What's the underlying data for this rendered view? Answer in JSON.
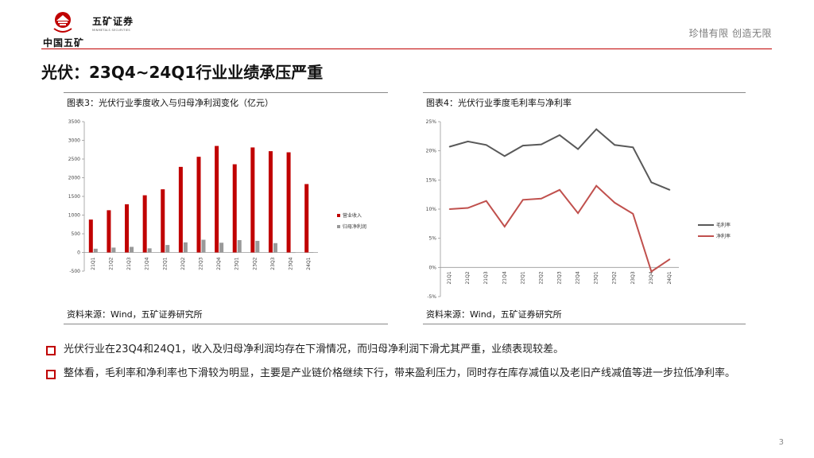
{
  "header": {
    "brand_cn": "五矿证券",
    "brand_en": "MINMETALS SECURITIES",
    "org_name": "中国五矿",
    "slogan": "珍惜有限 创造无限",
    "accent_color": "#c00000"
  },
  "page_title": "光伏：23Q4~24Q1行业业绩承压严重",
  "figures": [
    {
      "title": "图表3：光伏行业季度收入与归母净利润变化（亿元）",
      "source": "资料来源：Wind，五矿证券研究所"
    },
    {
      "title": "图表4：光伏行业季度毛利率与净利率",
      "source": "资料来源：Wind，五矿证券研究所"
    }
  ],
  "chart_data": [
    {
      "type": "bar",
      "categories": [
        "21Q1",
        "21Q2",
        "21Q3",
        "21Q4",
        "22Q1",
        "22Q2",
        "22Q3",
        "22Q4",
        "23Q1",
        "23Q2",
        "23Q3",
        "23Q4",
        "24Q1"
      ],
      "series": [
        {
          "name": "营业收入",
          "color": "#c00000",
          "values": [
            880,
            1130,
            1290,
            1530,
            1690,
            2290,
            2560,
            2850,
            2360,
            2810,
            2710,
            2680,
            1830
          ]
        },
        {
          "name": "归母净利润",
          "color": "#999999",
          "values": [
            100,
            130,
            150,
            110,
            200,
            270,
            340,
            260,
            330,
            310,
            250,
            -10,
            10
          ]
        }
      ],
      "yticks": [
        "-500",
        "0",
        "500",
        "1000",
        "1500",
        "2000",
        "2500",
        "3000",
        "3500"
      ],
      "ylim": [
        -500,
        3500
      ],
      "legend": "right"
    },
    {
      "type": "line",
      "categories": [
        "21Q1",
        "21Q2",
        "21Q3",
        "21Q4",
        "22Q1",
        "22Q2",
        "22Q3",
        "22Q4",
        "23Q1",
        "23Q2",
        "23Q3",
        "23Q4",
        "24Q1"
      ],
      "series": [
        {
          "name": "毛利率",
          "color": "#595959",
          "values": [
            20.7,
            21.6,
            21.0,
            19.1,
            20.9,
            21.1,
            22.7,
            20.3,
            23.7,
            21.0,
            20.6,
            14.6,
            13.3
          ]
        },
        {
          "name": "净利率",
          "color": "#c0504d",
          "values": [
            10.0,
            10.2,
            11.4,
            7.0,
            11.6,
            11.8,
            13.3,
            9.3,
            14.0,
            11.1,
            9.2,
            -0.7,
            1.4
          ]
        }
      ],
      "yticks": [
        "-5%",
        "0%",
        "5%",
        "10%",
        "15%",
        "20%",
        "25%"
      ],
      "ylim": [
        -5,
        25
      ],
      "legend": "right"
    }
  ],
  "bullets": [
    "光伏行业在23Q4和24Q1，收入及归母净利润均存在下滑情况，而归母净利润下滑尤其严重，业绩表现较差。",
    "整体看，毛利率和净利率也下滑较为明显，主要是产业链价格继续下行，带来盈利压力，同时存在库存减值以及老旧产线减值等进一步拉低净利率。"
  ],
  "page_number": "3"
}
